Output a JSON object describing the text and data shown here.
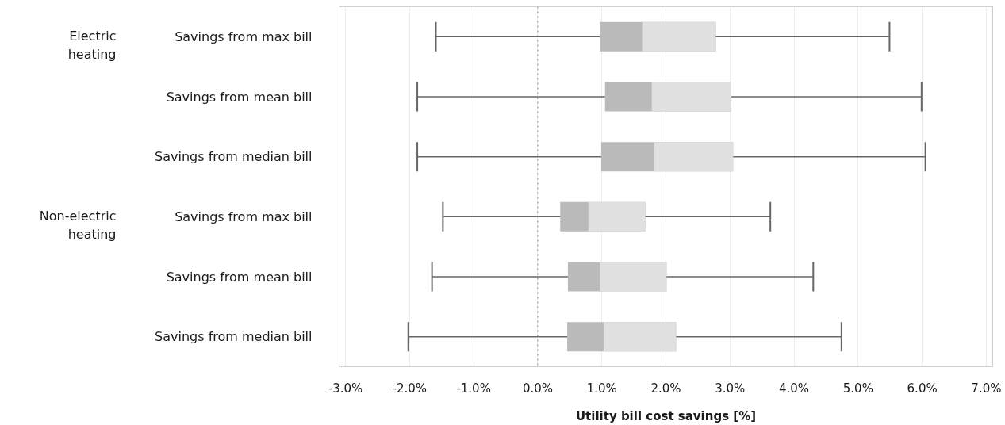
{
  "chart_data": {
    "type": "box",
    "orientation": "horizontal",
    "categories": [
      "Savings from max bill",
      "Savings from mean bill",
      "Savings from median bill",
      "Savings from max bill",
      "Savings from mean bill",
      "Savings from median bill"
    ],
    "color": "#bababa",
    "boxes": [
      {
        "low": -1.59,
        "q1": 0.97,
        "median": 1.63,
        "q3": 2.78,
        "high": 5.49
      },
      {
        "low": -1.88,
        "q1": 1.05,
        "median": 1.78,
        "q3": 3.02,
        "high": 5.99
      },
      {
        "low": -1.88,
        "q1": 0.99,
        "median": 1.82,
        "q3": 3.05,
        "high": 6.05
      },
      {
        "low": -1.48,
        "q1": 0.35,
        "median": 0.79,
        "q3": 1.68,
        "high": 3.63
      },
      {
        "low": -1.65,
        "q1": 0.47,
        "median": 0.97,
        "q3": 2.01,
        "high": 4.3
      },
      {
        "low": -2.02,
        "q1": 0.46,
        "median": 1.03,
        "q3": 2.16,
        "high": 4.74
      }
    ],
    "annotations": [
      "Electric heating",
      "Non-electric heating"
    ],
    "xlabel": "Utility bill cost savings [%]",
    "xlim": [
      -3.1,
      7.1
    ],
    "xticks": [
      {
        "value": -3,
        "label": "-3.0%"
      },
      {
        "value": -2,
        "label": "-2.0%"
      },
      {
        "value": -1,
        "label": "-1.0%"
      },
      {
        "value": 0,
        "label": "0.0%"
      },
      {
        "value": 1,
        "label": "1.0%"
      },
      {
        "value": 2,
        "label": "2.0%"
      },
      {
        "value": 3,
        "label": "3.0%"
      },
      {
        "value": 4,
        "label": "4.0%"
      },
      {
        "value": 5,
        "label": "5.0%"
      },
      {
        "value": 6,
        "label": "6.0%"
      },
      {
        "value": 7,
        "label": "7.0%"
      }
    ],
    "grid": "x",
    "ref_lines": [
      {
        "axis": "x",
        "value": 0,
        "color": "#999999",
        "line_style": "dotted"
      }
    ]
  }
}
